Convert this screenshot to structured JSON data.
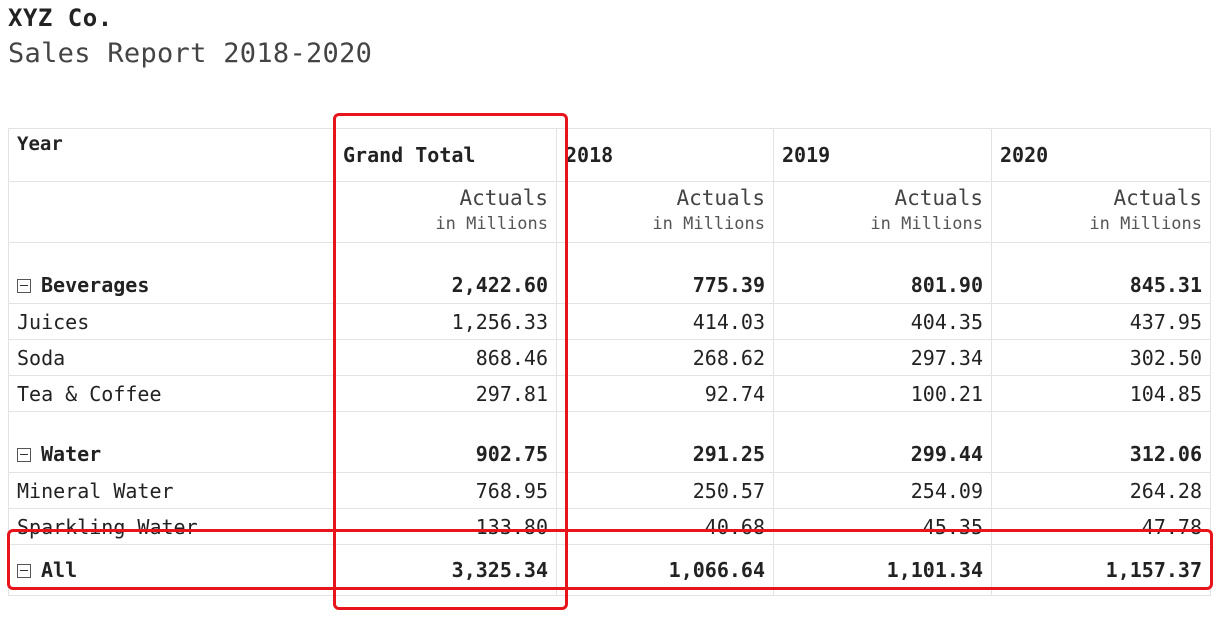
{
  "header": {
    "company": "XYZ Co.",
    "subtitle": "Sales Report 2018-2020"
  },
  "columns": {
    "row_label": "Year",
    "years": [
      "Grand Total",
      "2018",
      "2019",
      "2020"
    ],
    "measure": "Actuals",
    "unit": "in Millions"
  },
  "groups": [
    {
      "name": "Beverages",
      "totals": [
        "2,422.60",
        "775.39",
        "801.90",
        "845.31"
      ],
      "items": [
        {
          "name": "Juices",
          "values": [
            "1,256.33",
            "414.03",
            "404.35",
            "437.95"
          ]
        },
        {
          "name": "Soda",
          "values": [
            "868.46",
            "268.62",
            "297.34",
            "302.50"
          ]
        },
        {
          "name": "Tea & Coffee",
          "values": [
            "297.81",
            "92.74",
            "100.21",
            "104.85"
          ]
        }
      ]
    },
    {
      "name": "Water",
      "totals": [
        "902.75",
        "291.25",
        "299.44",
        "312.06"
      ],
      "items": [
        {
          "name": "Mineral Water",
          "values": [
            "768.95",
            "250.57",
            "254.09",
            "264.28"
          ]
        },
        {
          "name": "Sparkling Water",
          "values": [
            "133.80",
            "40.68",
            "45.35",
            "47.78"
          ]
        }
      ]
    }
  ],
  "all": {
    "name": "All",
    "totals": [
      "3,325.34",
      "1,066.64",
      "1,101.34",
      "1,157.37"
    ]
  },
  "highlight_color": "#e8141c"
}
